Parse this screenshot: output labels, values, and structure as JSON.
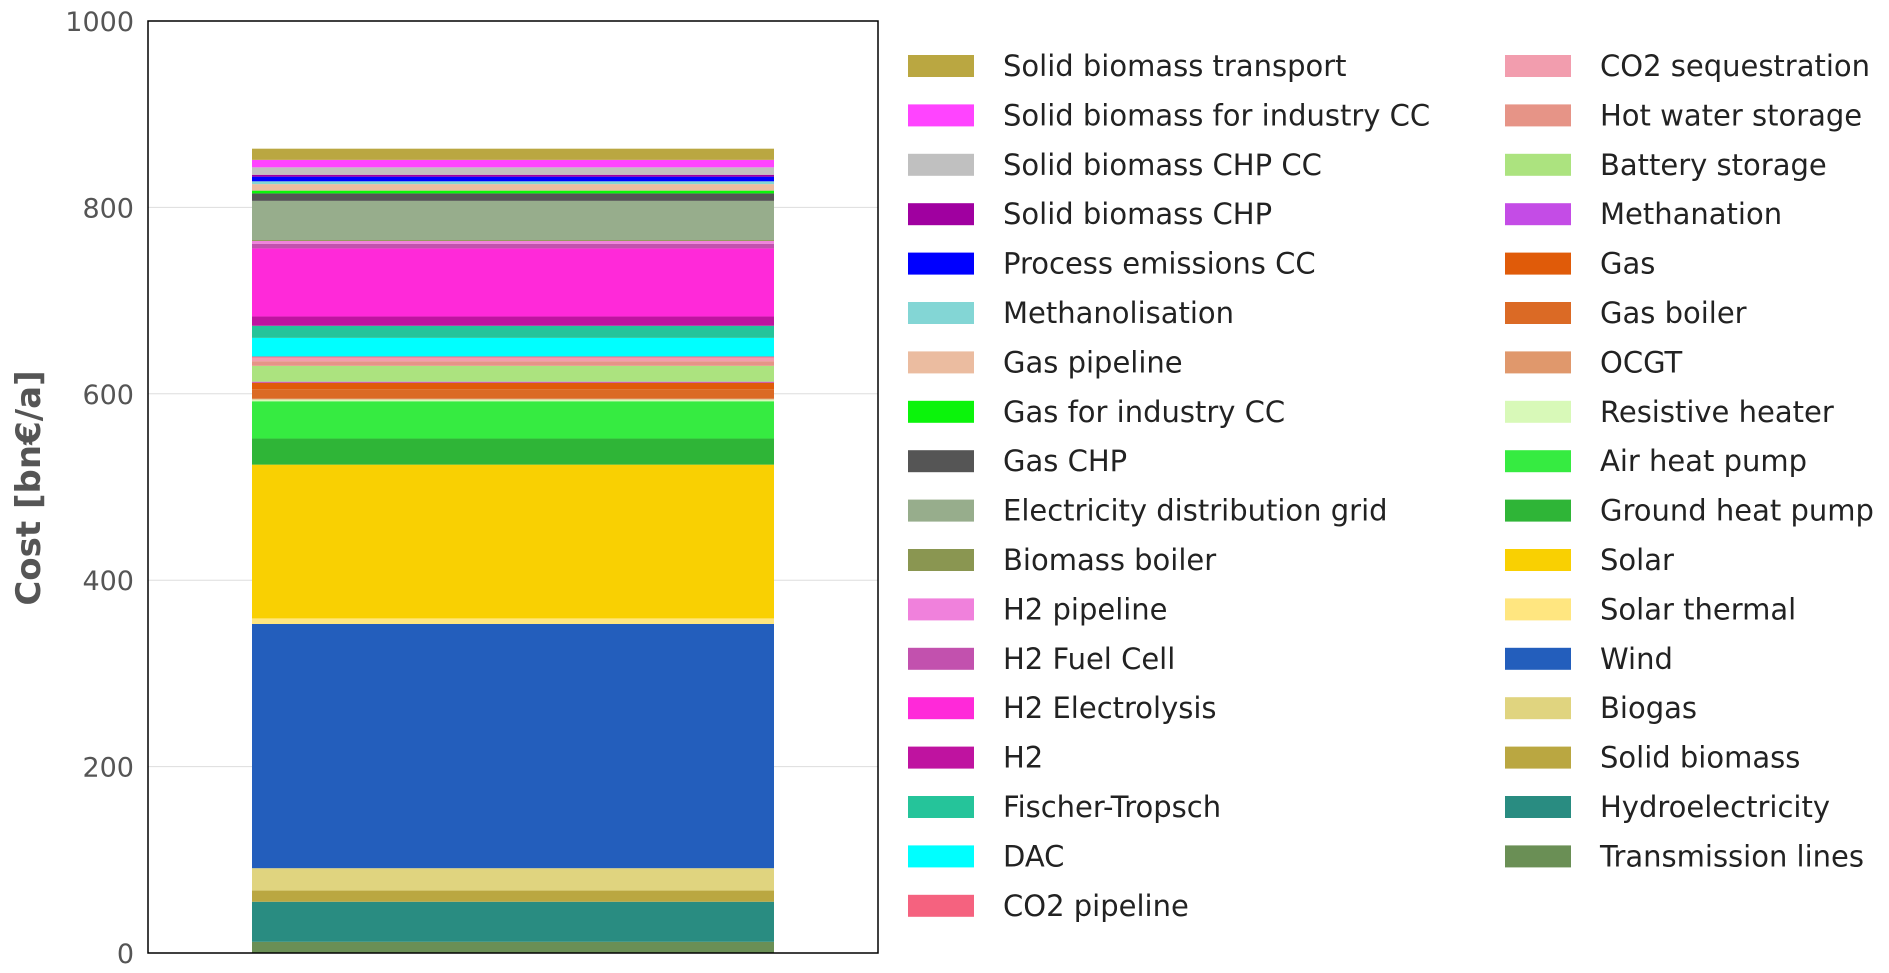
{
  "chart_data": {
    "type": "bar",
    "stacked": true,
    "title": "",
    "xlabel": "",
    "ylabel": "Cost [bn€/a]",
    "ylim": [
      0,
      1000
    ],
    "yticks": [
      0,
      200,
      400,
      600,
      800,
      1000
    ],
    "grid": true,
    "legend_position": "right",
    "categories": [
      ""
    ],
    "series": [
      {
        "name": "Transmission lines",
        "color": "#6a8f55",
        "values": [
          12
        ]
      },
      {
        "name": "Hydroelectricity",
        "color": "#298c81",
        "values": [
          43
        ]
      },
      {
        "name": "Solid biomass",
        "color": "#baa741",
        "values": [
          12
        ]
      },
      {
        "name": "Biogas",
        "color": "#e0d47f",
        "values": [
          24
        ]
      },
      {
        "name": "Wind",
        "color": "#235ebc",
        "values": [
          262
        ]
      },
      {
        "name": "Solar thermal",
        "color": "#ffe680",
        "values": [
          6
        ]
      },
      {
        "name": "Solar",
        "color": "#f9d002",
        "values": [
          165
        ]
      },
      {
        "name": "Ground heat pump",
        "color": "#2fb537",
        "values": [
          28
        ]
      },
      {
        "name": "Air heat pump",
        "color": "#36eb41",
        "values": [
          40
        ]
      },
      {
        "name": "Resistive heater",
        "color": "#d8f9b8",
        "values": [
          2
        ]
      },
      {
        "name": "OCGT",
        "color": "#e0986c",
        "values": [
          1
        ]
      },
      {
        "name": "Gas boiler",
        "color": "#db6a25",
        "values": [
          10
        ]
      },
      {
        "name": "Gas",
        "color": "#e05b09",
        "values": [
          7
        ]
      },
      {
        "name": "Methanation",
        "color": "#c44ce6",
        "values": [
          1
        ]
      },
      {
        "name": "Battery storage",
        "color": "#ace37f",
        "values": [
          17
        ]
      },
      {
        "name": "Hot water storage",
        "color": "#e69487",
        "values": [
          5
        ]
      },
      {
        "name": "CO2 sequestration",
        "color": "#f29dae",
        "values": [
          4
        ]
      },
      {
        "name": "CO2 pipeline",
        "color": "#f5627f",
        "values": [
          1
        ]
      },
      {
        "name": "DAC",
        "color": "#00ffff",
        "values": [
          20
        ]
      },
      {
        "name": "Fischer-Tropsch",
        "color": "#25c49a",
        "values": [
          13
        ]
      },
      {
        "name": "H2",
        "color": "#bf13a0",
        "values": [
          10
        ]
      },
      {
        "name": "H2 Electrolysis",
        "color": "#ff29d9",
        "values": [
          73
        ]
      },
      {
        "name": "H2 Fuel Cell",
        "color": "#c251ae",
        "values": [
          5
        ]
      },
      {
        "name": "H2 pipeline",
        "color": "#f081dc",
        "values": [
          3
        ]
      },
      {
        "name": "Biomass boiler",
        "color": "#8a9651",
        "values": [
          1
        ]
      },
      {
        "name": "Electricity distribution grid",
        "color": "#97ad8c",
        "values": [
          42
        ]
      },
      {
        "name": "Gas CHP",
        "color": "#555555",
        "values": [
          8
        ]
      },
      {
        "name": "Gas for industry CC",
        "color": "#0bf40b",
        "values": [
          3
        ]
      },
      {
        "name": "Gas pipeline",
        "color": "#ebbca0",
        "values": [
          7
        ]
      },
      {
        "name": "Methanolisation",
        "color": "#83d6d5",
        "values": [
          3
        ]
      },
      {
        "name": "Process emissions CC",
        "color": "#0000ff",
        "values": [
          5
        ]
      },
      {
        "name": "Solid biomass CHP",
        "color": "#a000a0",
        "values": [
          2
        ]
      },
      {
        "name": "Solid biomass CHP CC",
        "color": "#c0c0c0",
        "values": [
          8
        ]
      },
      {
        "name": "Solid biomass for industry CC",
        "color": "#ff44ff",
        "values": [
          8
        ]
      },
      {
        "name": "Solid biomass transport",
        "color": "#baa741",
        "values": [
          12
        ]
      }
    ],
    "legend": [
      [
        "Solid biomass transport",
        "Solid biomass for industry CC",
        "Solid biomass CHP CC",
        "Solid biomass CHP",
        "Process emissions CC",
        "Methanolisation",
        "Gas pipeline",
        "Gas for industry CC",
        "Gas CHP",
        "Electricity distribution grid",
        "Biomass boiler",
        "H2 pipeline",
        "H2 Fuel Cell",
        "H2 Electrolysis",
        "H2",
        "Fischer-Tropsch",
        "DAC",
        "CO2 pipeline"
      ],
      [
        "CO2 sequestration",
        "Hot water storage",
        "Battery storage",
        "Methanation",
        "Gas",
        "Gas boiler",
        "OCGT",
        "Resistive heater",
        "Air heat pump",
        "Ground heat pump",
        "Solar",
        "Solar thermal",
        "Wind",
        "Biogas",
        "Solid biomass",
        "Hydroelectricity",
        "Transmission lines"
      ]
    ]
  }
}
